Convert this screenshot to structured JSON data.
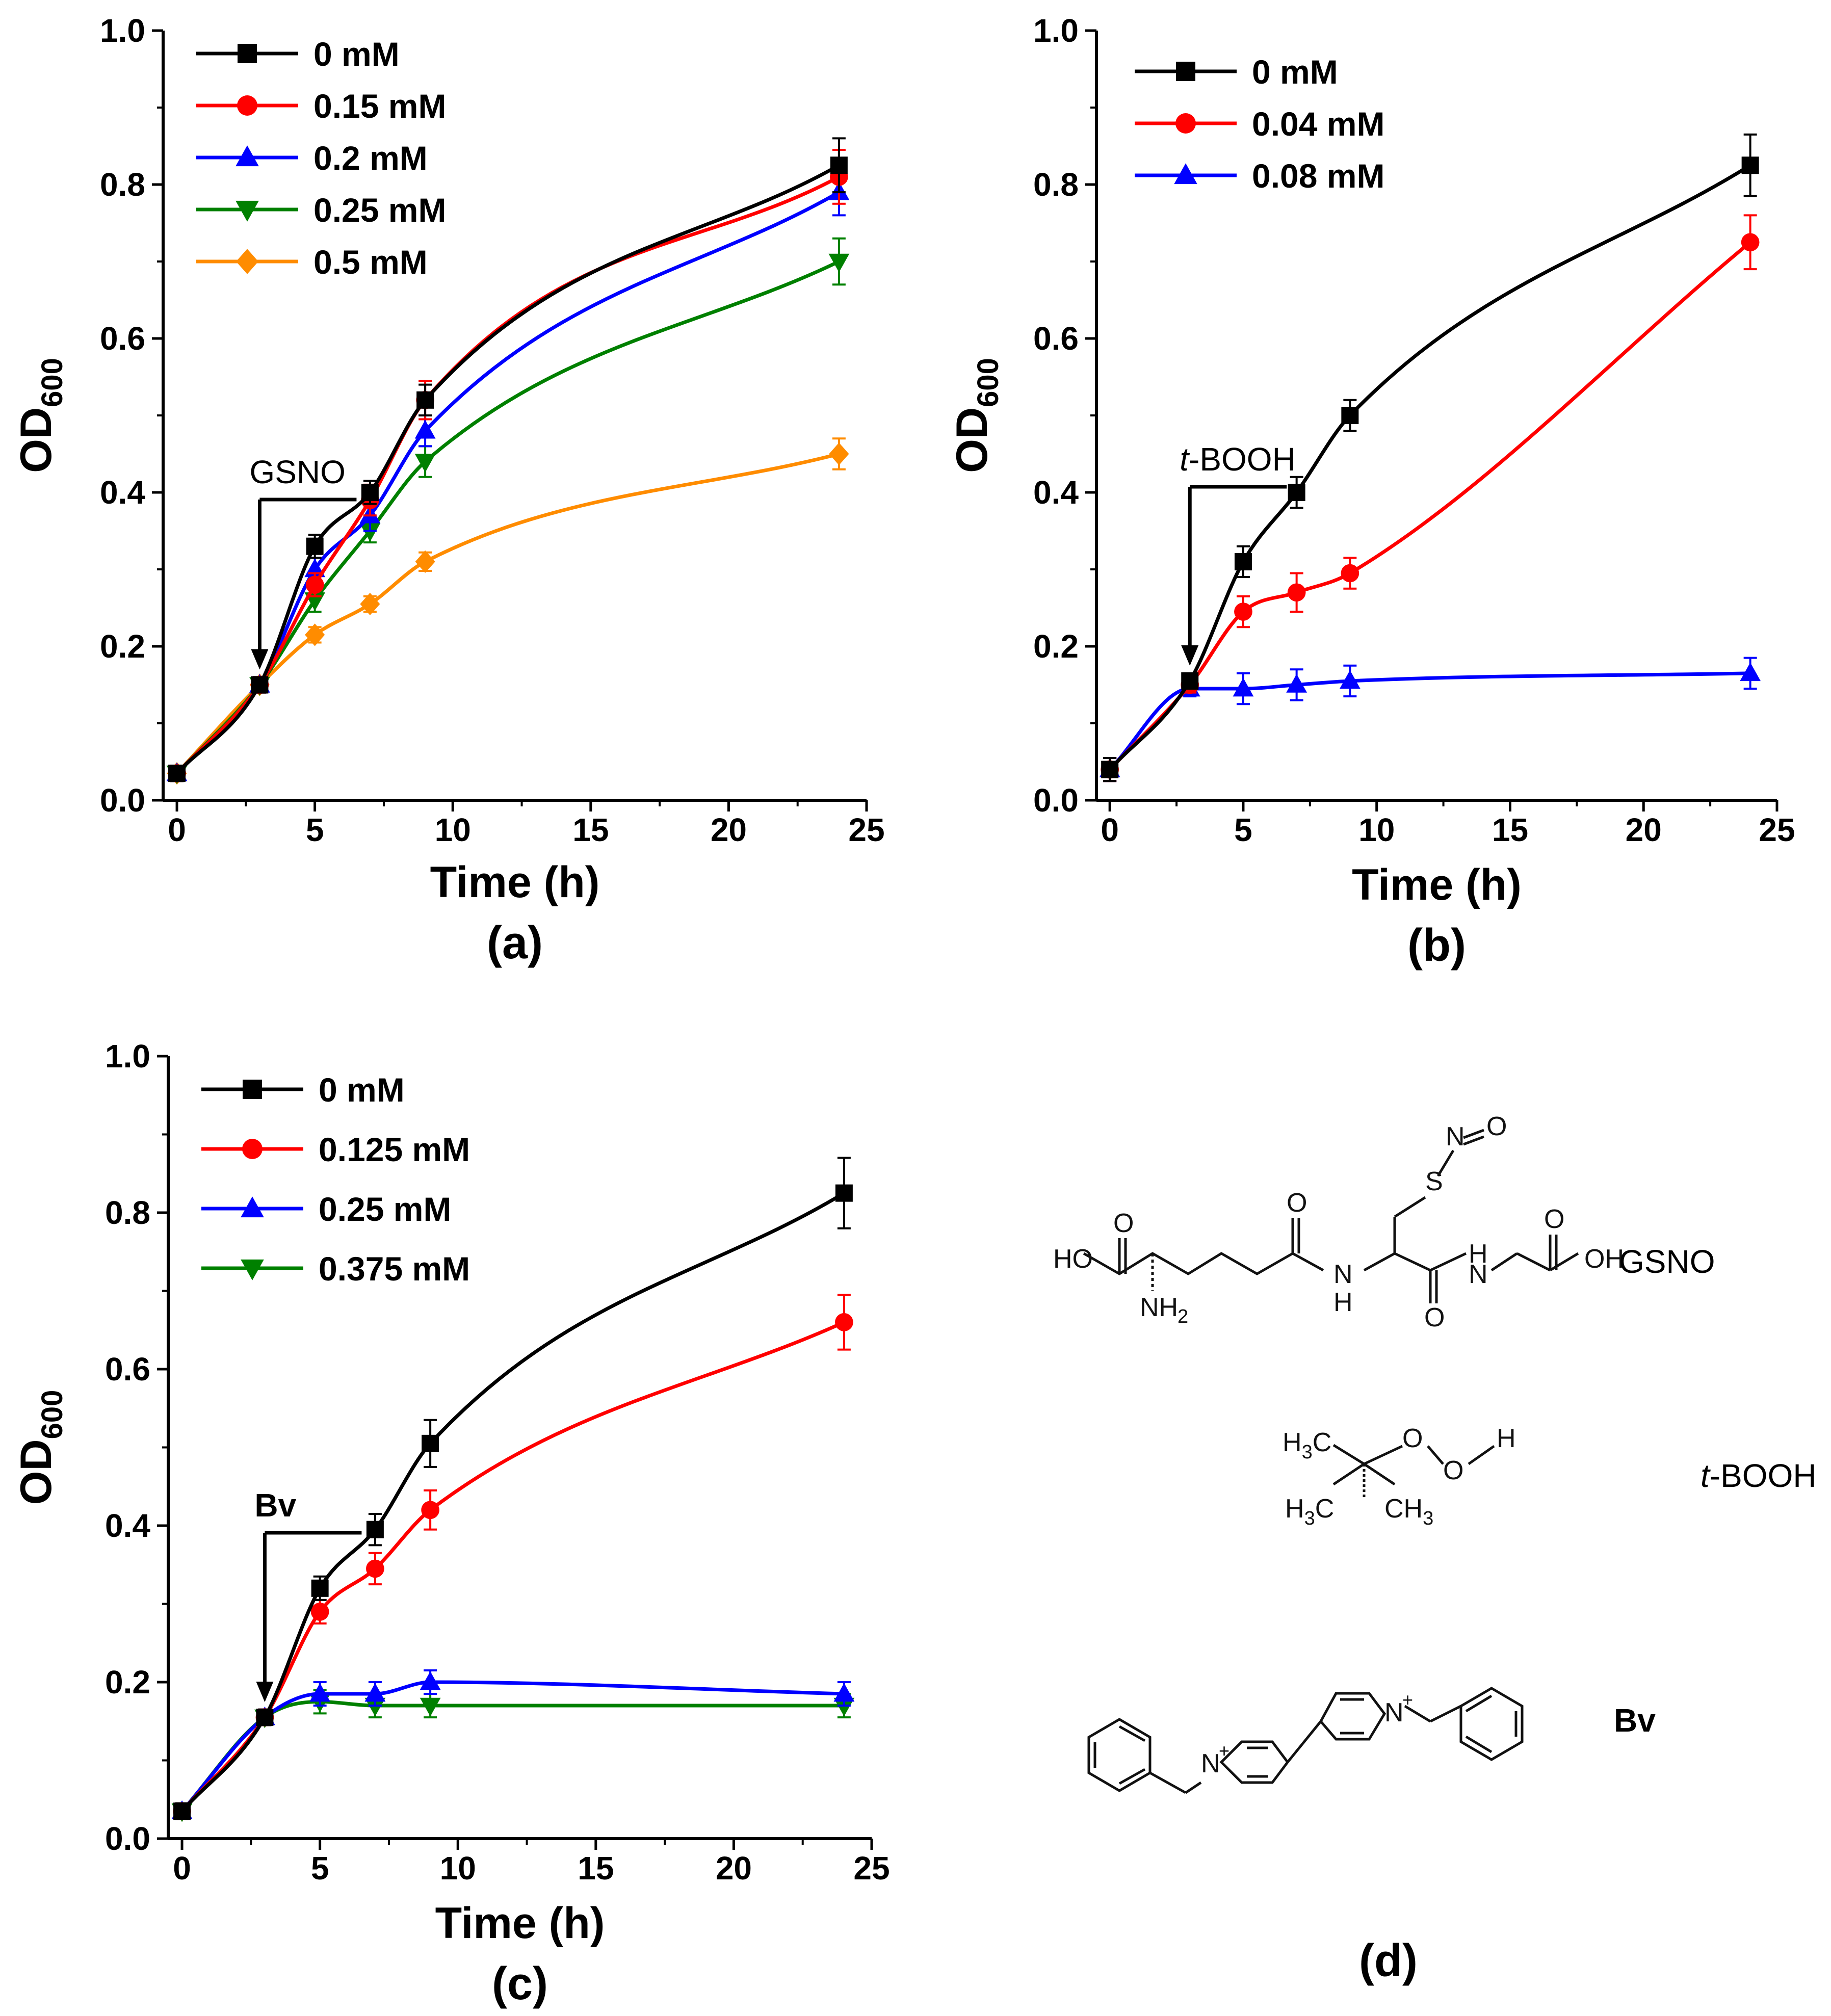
{
  "chart_data": [
    {
      "type": "line",
      "panel": "(a)",
      "xlabel": "Time (h)",
      "ylabel_main": "OD",
      "ylabel_sub": "600",
      "xlim": [
        -0.5,
        25
      ],
      "ylim": [
        0,
        1.0
      ],
      "xticks": [
        0,
        5,
        10,
        15,
        20,
        25
      ],
      "yticks": [
        0.0,
        0.2,
        0.4,
        0.6,
        0.8,
        1.0
      ],
      "annotation": {
        "text": "GSNO",
        "style": "normal",
        "arrow_x": 3
      },
      "x": [
        0,
        3,
        5,
        7,
        9,
        24
      ],
      "series": [
        {
          "name": "0 mM",
          "color": "#000000",
          "marker": "square",
          "values": [
            0.035,
            0.15,
            0.33,
            0.4,
            0.52,
            0.825
          ],
          "err": [
            0.01,
            0.01,
            0.015,
            0.015,
            0.02,
            0.035
          ]
        },
        {
          "name": "0.15 mM",
          "color": "#ff0000",
          "marker": "circle",
          "values": [
            0.035,
            0.15,
            0.28,
            0.39,
            0.52,
            0.81
          ],
          "err": [
            0.01,
            0.01,
            0.015,
            0.02,
            0.025,
            0.035
          ]
        },
        {
          "name": "0.2 mM",
          "color": "#0000ff",
          "marker": "triangle-up",
          "values": [
            0.035,
            0.15,
            0.3,
            0.37,
            0.48,
            0.79
          ],
          "err": [
            0.01,
            0.01,
            0.015,
            0.02,
            0.02,
            0.03
          ]
        },
        {
          "name": "0.25 mM",
          "color": "#008000",
          "marker": "triangle-down",
          "values": [
            0.035,
            0.15,
            0.26,
            0.35,
            0.44,
            0.7
          ],
          "err": [
            0.01,
            0.01,
            0.015,
            0.015,
            0.02,
            0.03
          ]
        },
        {
          "name": "0.5 mM",
          "color": "#ff8c00",
          "marker": "diamond",
          "values": [
            0.035,
            0.15,
            0.215,
            0.255,
            0.31,
            0.45
          ],
          "err": [
            0.01,
            0.01,
            0.01,
            0.01,
            0.012,
            0.02
          ]
        }
      ]
    },
    {
      "type": "line",
      "panel": "(b)",
      "xlabel": "Time (h)",
      "ylabel_main": "OD",
      "ylabel_sub": "600",
      "xlim": [
        -0.5,
        25
      ],
      "ylim": [
        0,
        1.0
      ],
      "xticks": [
        0,
        5,
        10,
        15,
        20,
        25
      ],
      "yticks": [
        0.0,
        0.2,
        0.4,
        0.6,
        0.8,
        1.0
      ],
      "annotation": {
        "text": "t-BOOH",
        "style": "italic-t",
        "arrow_x": 3
      },
      "x": [
        0,
        3,
        5,
        7,
        9,
        24
      ],
      "series": [
        {
          "name": "0 mM",
          "color": "#000000",
          "marker": "square",
          "values": [
            0.04,
            0.155,
            0.31,
            0.4,
            0.5,
            0.825
          ],
          "err": [
            0.015,
            0.01,
            0.02,
            0.02,
            0.02,
            0.04
          ]
        },
        {
          "name": "0.04 mM",
          "color": "#ff0000",
          "marker": "circle",
          "values": [
            0.04,
            0.15,
            0.245,
            0.27,
            0.295,
            0.725
          ],
          "err": [
            0.015,
            0.01,
            0.02,
            0.025,
            0.02,
            0.035
          ]
        },
        {
          "name": "0.08 mM",
          "color": "#0000ff",
          "marker": "triangle-up",
          "values": [
            0.04,
            0.145,
            0.145,
            0.15,
            0.155,
            0.165
          ],
          "err": [
            0.015,
            0.01,
            0.02,
            0.02,
            0.02,
            0.02
          ]
        }
      ]
    },
    {
      "type": "line",
      "panel": "(c)",
      "xlabel": "Time (h)",
      "ylabel_main": "OD",
      "ylabel_sub": "600",
      "xlim": [
        -0.5,
        25
      ],
      "ylim": [
        0,
        1.0
      ],
      "xticks": [
        0,
        5,
        10,
        15,
        20,
        25
      ],
      "yticks": [
        0.0,
        0.2,
        0.4,
        0.6,
        0.8,
        1.0
      ],
      "annotation": {
        "text": "Bv",
        "style": "bold",
        "arrow_x": 3
      },
      "x": [
        0,
        3,
        5,
        7,
        9,
        24
      ],
      "series": [
        {
          "name": "0 mM",
          "color": "#000000",
          "marker": "square",
          "values": [
            0.035,
            0.155,
            0.32,
            0.395,
            0.505,
            0.825
          ],
          "err": [
            0.01,
            0.01,
            0.015,
            0.02,
            0.03,
            0.045
          ]
        },
        {
          "name": "0.125 mM",
          "color": "#ff0000",
          "marker": "circle",
          "values": [
            0.035,
            0.155,
            0.29,
            0.345,
            0.42,
            0.66
          ],
          "err": [
            0.01,
            0.01,
            0.015,
            0.02,
            0.025,
            0.035
          ]
        },
        {
          "name": "0.25 mM",
          "color": "#0000ff",
          "marker": "triangle-up",
          "values": [
            0.035,
            0.155,
            0.185,
            0.185,
            0.2,
            0.185
          ],
          "err": [
            0.01,
            0.01,
            0.015,
            0.015,
            0.015,
            0.015
          ]
        },
        {
          "name": "0.375 mM",
          "color": "#008000",
          "marker": "triangle-down",
          "values": [
            0.035,
            0.155,
            0.175,
            0.17,
            0.17,
            0.17
          ],
          "err": [
            0.01,
            0.01,
            0.015,
            0.015,
            0.015,
            0.015
          ]
        }
      ]
    }
  ],
  "panel_d": {
    "label": "(d)",
    "compounds": [
      {
        "name": "GSNO",
        "atoms": [
          "HO",
          "NH",
          "H",
          "N",
          "H",
          "OH",
          "S",
          "N",
          "O",
          "O",
          "O",
          "O",
          "O"
        ],
        "sub_atom": "NH",
        "sub_digit": "2"
      },
      {
        "name_prefix": "t",
        "name_rest": "-BOOH",
        "groups": [
          "H",
          "C",
          "3"
        ],
        "atoms": [
          "O",
          "O",
          "H"
        ],
        "bottom_left": [
          "H",
          "C",
          "3"
        ],
        "bottom_right": [
          "CH",
          "3"
        ]
      },
      {
        "name": "Bv",
        "charges": [
          "N",
          "+"
        ]
      }
    ]
  }
}
